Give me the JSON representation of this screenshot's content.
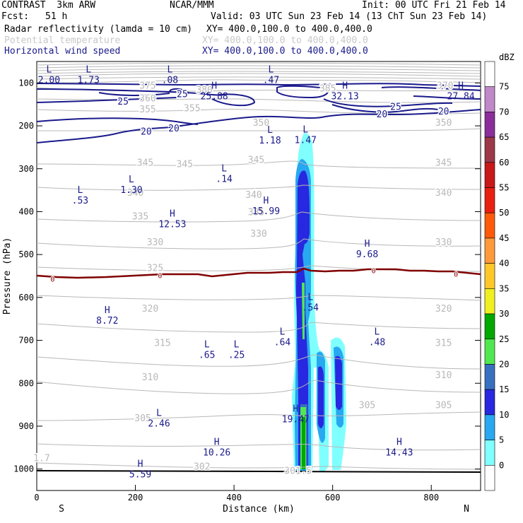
{
  "header": {
    "model": "CONTRAST  3km ARW",
    "org": "NCAR/MMM",
    "init": "Init: 00 UTC Fri 21 Feb 14",
    "fcst_label": "Fcst:",
    "fcst_value": "51 h",
    "valid": "Valid: 03 UTC Sun 23 Feb 14 (13 ChT Sun 23 Feb 14)",
    "field1_name": "Radar reflectivity (lamda = 10 cm)",
    "field1_xy": "XY= 400.0,100.0 to 400.0,400.0",
    "field2_name": "Potential temperature",
    "field2_xy": "XY= 400.0,100.0 to 400.0,400.0",
    "field3_name": "Horizontal wind speed",
    "field3_xy": "XY= 400.0,100.0 to 400.0,400.0"
  },
  "colors": {
    "wind": "#1a1a8c",
    "theta": "#b8b8b8",
    "zero_isotherm": "#800000",
    "text": "#000000"
  },
  "chart_data": {
    "type": "heatmap",
    "title": "Radar reflectivity / Potential temperature / Horizontal wind speed cross-section",
    "xlabel": "Distance (km)",
    "ylabel": "Pressure (hPa)",
    "x_ticks": [
      0,
      200,
      400,
      600,
      800
    ],
    "xlim": [
      0,
      900
    ],
    "y_ticks": [
      100,
      200,
      300,
      400,
      500,
      600,
      700,
      800,
      900,
      1000
    ],
    "ylim": [
      50,
      1050
    ],
    "x_end_labels": {
      "left": "S",
      "right": "N"
    },
    "colorbar": {
      "unit": "dBZ",
      "levels": [
        "75",
        "70",
        "65",
        "60",
        "55",
        "50",
        "45",
        "40",
        "35",
        "30",
        "25",
        "20",
        "15",
        "10",
        "5",
        "0"
      ],
      "colors": [
        "#ffffff",
        "#c088c8",
        "#8c2d9c",
        "#9c3848",
        "#c81818",
        "#e82010",
        "#ff5a0a",
        "#ff9a3a",
        "#ffc828",
        "#f0f020",
        "#00a800",
        "#50e850",
        "#3870c0",
        "#2828e0",
        "#28a8f0",
        "#80ffff",
        "#ffffff"
      ]
    },
    "theta_contours": [
      {
        "value": "385",
        "x": 590,
        "p": 112
      },
      {
        "value": "380",
        "x": 340,
        "p": 115
      },
      {
        "value": "375",
        "x": 225,
        "p": 105
      },
      {
        "value": "370",
        "x": 828,
        "p": 105
      },
      {
        "value": "360",
        "x": 225,
        "p": 135
      },
      {
        "value": "355",
        "x": 225,
        "p": 160
      },
      {
        "value": "355",
        "x": 315,
        "p": 158
      },
      {
        "value": "350",
        "x": 455,
        "p": 192
      },
      {
        "value": "350",
        "x": 825,
        "p": 192
      },
      {
        "value": "345",
        "x": 220,
        "p": 285
      },
      {
        "value": "345",
        "x": 300,
        "p": 288
      },
      {
        "value": "345",
        "x": 445,
        "p": 278
      },
      {
        "value": "345",
        "x": 825,
        "p": 285
      },
      {
        "value": "340",
        "x": 200,
        "p": 355
      },
      {
        "value": "340",
        "x": 440,
        "p": 360
      },
      {
        "value": "340",
        "x": 825,
        "p": 355
      },
      {
        "value": "335",
        "x": 210,
        "p": 410
      },
      {
        "value": "335",
        "x": 445,
        "p": 400
      },
      {
        "value": "330",
        "x": 240,
        "p": 470
      },
      {
        "value": "330",
        "x": 450,
        "p": 450
      },
      {
        "value": "330",
        "x": 825,
        "p": 470
      },
      {
        "value": "325",
        "x": 240,
        "p": 530
      },
      {
        "value": "320",
        "x": 230,
        "p": 625
      },
      {
        "value": "320",
        "x": 825,
        "p": 625
      },
      {
        "value": "315",
        "x": 255,
        "p": 705
      },
      {
        "value": "315",
        "x": 825,
        "p": 705
      },
      {
        "value": "310",
        "x": 230,
        "p": 785
      },
      {
        "value": "310",
        "x": 825,
        "p": 780
      },
      {
        "value": "305",
        "x": 215,
        "p": 880
      },
      {
        "value": "305",
        "x": 670,
        "p": 850
      },
      {
        "value": "305",
        "x": 825,
        "p": 850
      },
      {
        "value": "302",
        "x": 335,
        "p": 993
      },
      {
        "value": "301.5",
        "x": 530,
        "p": 1003
      },
      {
        "value": "1.7",
        "x": 10,
        "p": 973
      }
    ],
    "wind_contours": [
      {
        "value": "25",
        "x": 295,
        "p": 125
      },
      {
        "value": "25",
        "x": 175,
        "p": 142
      },
      {
        "value": "25",
        "x": 728,
        "p": 155
      },
      {
        "value": "20",
        "x": 700,
        "p": 172
      },
      {
        "value": "20",
        "x": 825,
        "p": 165
      },
      {
        "value": "20",
        "x": 222,
        "p": 212
      },
      {
        "value": "20",
        "x": 278,
        "p": 205
      }
    ],
    "zero_isotherm_labels": [
      {
        "value": "0",
        "x": 32,
        "p": 557
      },
      {
        "value": "0",
        "x": 250,
        "p": 548
      },
      {
        "value": "0",
        "x": 683,
        "p": 537
      },
      {
        "value": "0",
        "x": 850,
        "p": 545
      }
    ],
    "extrema": [
      {
        "kind": "L",
        "value": "2.00",
        "x": 25,
        "p": 82
      },
      {
        "kind": "L",
        "value": "1.73",
        "x": 105,
        "p": 82
      },
      {
        "kind": "L",
        "value": ".08",
        "x": 270,
        "p": 82
      },
      {
        "kind": "L",
        "value": ".47",
        "x": 475,
        "p": 82
      },
      {
        "kind": "H",
        "value": "25.88",
        "x": 360,
        "p": 120
      },
      {
        "kind": "H",
        "value": "32.13",
        "x": 625,
        "p": 120
      },
      {
        "kind": "H",
        "value": "27.84",
        "x": 860,
        "p": 120
      },
      {
        "kind": "L",
        "value": "1.18",
        "x": 473,
        "p": 223
      },
      {
        "kind": "L",
        "value": "1.47",
        "x": 545,
        "p": 222
      },
      {
        "kind": "L",
        "value": ".14",
        "x": 380,
        "p": 313
      },
      {
        "kind": "L",
        "value": "1.30",
        "x": 192,
        "p": 338
      },
      {
        "kind": "L",
        "value": ".53",
        "x": 88,
        "p": 363
      },
      {
        "kind": "H",
        "value": "15.99",
        "x": 465,
        "p": 388
      },
      {
        "kind": "H",
        "value": "12.53",
        "x": 275,
        "p": 418
      },
      {
        "kind": "H",
        "value": "9.68",
        "x": 670,
        "p": 488
      },
      {
        "kind": "L",
        "value": ".54",
        "x": 555,
        "p": 613
      },
      {
        "kind": "H",
        "value": "8.72",
        "x": 143,
        "p": 643
      },
      {
        "kind": "L",
        "value": ".64",
        "x": 498,
        "p": 693
      },
      {
        "kind": "L",
        "value": ".48",
        "x": 690,
        "p": 693
      },
      {
        "kind": "L",
        "value": ".65",
        "x": 345,
        "p": 723
      },
      {
        "kind": "L",
        "value": ".25",
        "x": 405,
        "p": 723
      },
      {
        "kind": "H",
        "value": "19.47",
        "x": 525,
        "p": 873
      },
      {
        "kind": "L",
        "value": "2.46",
        "x": 248,
        "p": 883
      },
      {
        "kind": "H",
        "value": "10.26",
        "x": 365,
        "p": 950
      },
      {
        "kind": "H",
        "value": "14.43",
        "x": 735,
        "p": 950
      },
      {
        "kind": "H",
        "value": "5.59",
        "x": 210,
        "p": 1001
      }
    ]
  }
}
